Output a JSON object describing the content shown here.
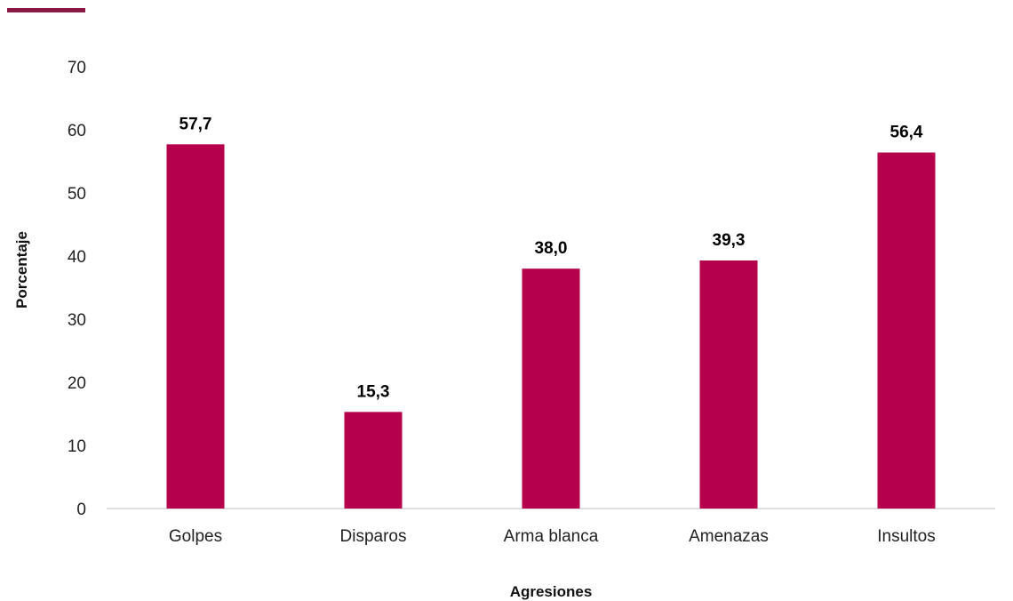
{
  "colors": {
    "bar": "#B5004B",
    "accent": "#8B1A44",
    "axis": "#BFBFBF"
  },
  "chart_data": {
    "type": "bar",
    "categories": [
      "Golpes",
      "Disparos",
      "Arma blanca",
      "Amenazas",
      "Insultos"
    ],
    "values": [
      57.7,
      15.3,
      38.0,
      39.3,
      56.4
    ],
    "value_labels": [
      "57,7",
      "15,3",
      "38,0",
      "39,3",
      "56,4"
    ],
    "title": "",
    "xlabel": "Agresiones",
    "ylabel": "Porcentaje",
    "ylim": [
      0,
      70
    ],
    "yticks": [
      "0",
      "10",
      "20",
      "30",
      "40",
      "50",
      "60",
      "70"
    ],
    "grid": false,
    "legend": "none"
  }
}
